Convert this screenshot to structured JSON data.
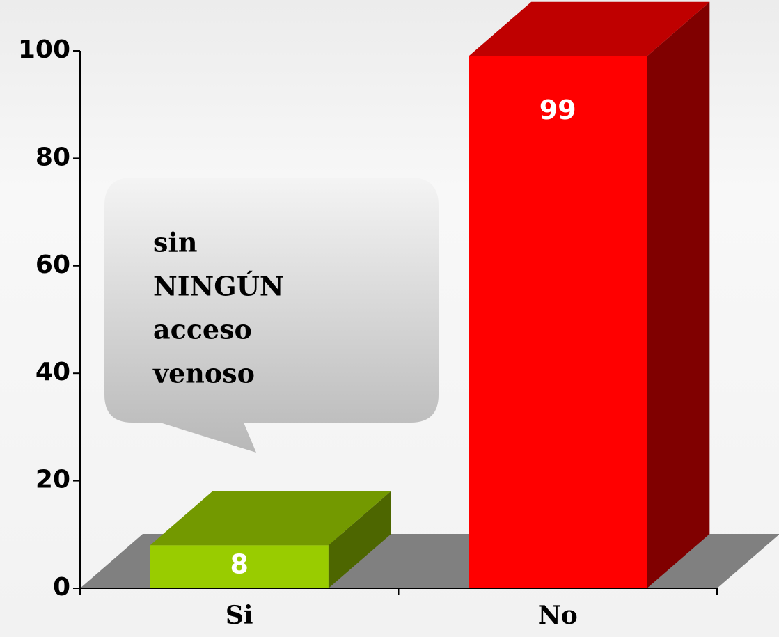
{
  "chart_data": {
    "type": "bar3d",
    "categories": [
      "Si",
      "No"
    ],
    "values": [
      8,
      99
    ],
    "colors": [
      "#99cc00",
      "#ff0000"
    ],
    "ylim": [
      0,
      100
    ],
    "yticks": [
      0,
      20,
      40,
      60,
      80,
      100
    ],
    "annotation": [
      "sin",
      "NINGÚN",
      "acceso",
      "venoso"
    ]
  }
}
